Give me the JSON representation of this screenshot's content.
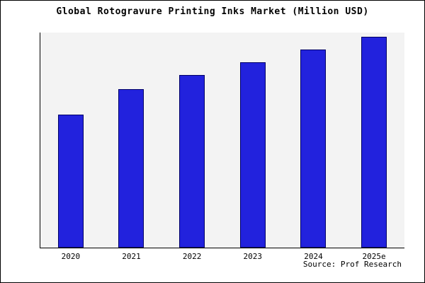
{
  "page": {
    "title": "Global Rotogravure Printing Inks Market (Million USD)",
    "source": "Source: Prof Research"
  },
  "chart_data": {
    "type": "bar",
    "title": "Global Rotogravure Printing Inks Market (Million USD)",
    "categories": [
      "2020",
      "2021",
      "2022",
      "2023",
      "2024",
      "2025e"
    ],
    "values": [
      63,
      75,
      82,
      88,
      94,
      100
    ],
    "xlabel": "",
    "ylabel": "",
    "ylim": [
      0,
      100
    ],
    "y_axis_ticks_visible": false,
    "grid": false,
    "legend_position": "none",
    "colors": {
      "bar_fill": "#2222DD",
      "bar_border": "#000066",
      "plot_background": "#F3F3F3",
      "page_background": "#FFFFFF",
      "frame_border": "#000000"
    }
  }
}
